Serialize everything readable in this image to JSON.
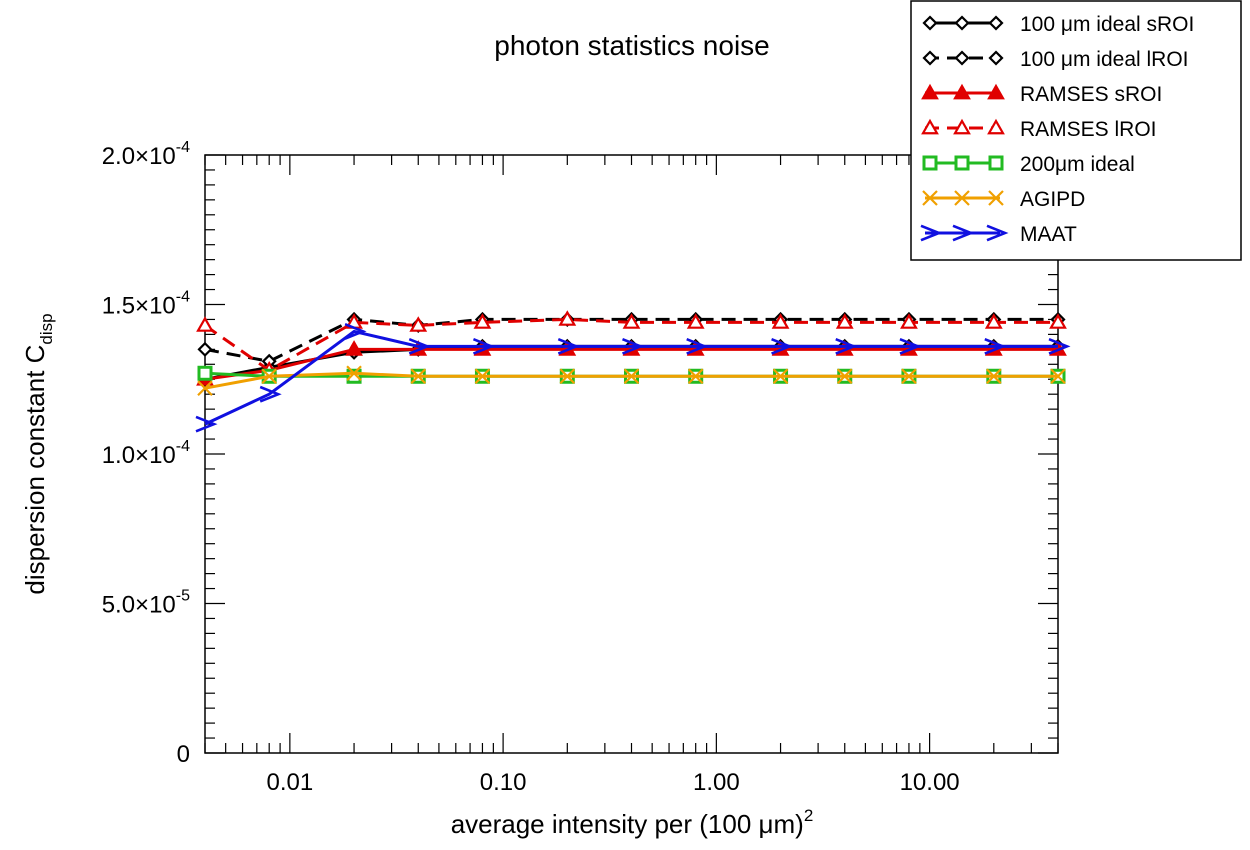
{
  "chart_data": {
    "type": "line",
    "title": "photon statistics noise",
    "xlabel": "average intensity per (100 μm)",
    "xlabel_superscript": "2",
    "ylabel": "dispersion constant C",
    "ylabel_subscript": "disp",
    "xscale": "log",
    "xlim": [
      0.004,
      40
    ],
    "ylim": [
      0,
      0.0002
    ],
    "grid": false,
    "legend_position": "top-right, outside plot",
    "x_ticks": [
      {
        "value": 0.01,
        "label": "0.01"
      },
      {
        "value": 0.1,
        "label": "0.10"
      },
      {
        "value": 1,
        "label": "1.00"
      },
      {
        "value": 10,
        "label": "10.00"
      }
    ],
    "y_ticks": [
      {
        "value": 0,
        "mantissa": "0",
        "exponent": ""
      },
      {
        "value": 5e-05,
        "mantissa": "5.0×10",
        "exponent": "-5"
      },
      {
        "value": 0.0001,
        "mantissa": "1.0×10",
        "exponent": "-4"
      },
      {
        "value": 0.00015,
        "mantissa": "1.5×10",
        "exponent": "-4"
      },
      {
        "value": 0.0002,
        "mantissa": "2.0×10",
        "exponent": "-4"
      }
    ],
    "series": [
      {
        "name": "100 μm ideal sROI",
        "color": "#000000",
        "dash": "solid",
        "marker": "diamond",
        "marker_fill": "white",
        "x": [
          0.004,
          0.008,
          0.02,
          0.04,
          0.08,
          0.2,
          0.4,
          0.8,
          2,
          4,
          8,
          20,
          40
        ],
        "values": [
          0.000125,
          0.000129,
          0.000134,
          0.000135,
          0.000136,
          0.000136,
          0.000136,
          0.000136,
          0.000136,
          0.000136,
          0.000136,
          0.000136,
          0.000136
        ]
      },
      {
        "name": "100 μm ideal lROI",
        "color": "#000000",
        "dash": "dashed",
        "marker": "diamond",
        "marker_fill": "white",
        "x": [
          0.004,
          0.008,
          0.02,
          0.04,
          0.08,
          0.2,
          0.4,
          0.8,
          2,
          4,
          8,
          20,
          40
        ],
        "values": [
          0.000135,
          0.000131,
          0.000145,
          0.000143,
          0.000145,
          0.000145,
          0.000145,
          0.000145,
          0.000145,
          0.000145,
          0.000145,
          0.000145,
          0.000145
        ]
      },
      {
        "name": "RAMSES sROI",
        "color": "#e00000",
        "dash": "solid",
        "marker": "triangle",
        "marker_fill": "#e00000",
        "x": [
          0.004,
          0.008,
          0.02,
          0.04,
          0.08,
          0.2,
          0.4,
          0.8,
          2,
          4,
          8,
          20,
          40
        ],
        "values": [
          0.000125,
          0.000128,
          0.000135,
          0.000135,
          0.000135,
          0.000135,
          0.000135,
          0.000135,
          0.000135,
          0.000135,
          0.000135,
          0.000135,
          0.000135
        ]
      },
      {
        "name": "RAMSES lROI",
        "color": "#e00000",
        "dash": "dashed",
        "marker": "triangle",
        "marker_fill": "white",
        "x": [
          0.004,
          0.008,
          0.02,
          0.04,
          0.08,
          0.2,
          0.4,
          0.8,
          2,
          4,
          8,
          20,
          40
        ],
        "values": [
          0.000143,
          0.000128,
          0.000144,
          0.000143,
          0.000144,
          0.000145,
          0.000144,
          0.000144,
          0.000144,
          0.000144,
          0.000144,
          0.000144,
          0.000144
        ]
      },
      {
        "name": "200μm ideal",
        "color": "#22bb22",
        "dash": "solid",
        "marker": "square",
        "marker_fill": "white",
        "x": [
          0.004,
          0.008,
          0.02,
          0.04,
          0.08,
          0.2,
          0.4,
          0.8,
          2,
          4,
          8,
          20,
          40
        ],
        "values": [
          0.000127,
          0.000126,
          0.000126,
          0.000126,
          0.000126,
          0.000126,
          0.000126,
          0.000126,
          0.000126,
          0.000126,
          0.000126,
          0.000126,
          0.000126
        ]
      },
      {
        "name": "AGIPD",
        "color": "#f0a000",
        "dash": "solid",
        "marker": "x",
        "marker_fill": "none",
        "x": [
          0.004,
          0.008,
          0.02,
          0.04,
          0.08,
          0.2,
          0.4,
          0.8,
          2,
          4,
          8,
          20,
          40
        ],
        "values": [
          0.000122,
          0.000126,
          0.000127,
          0.000126,
          0.000126,
          0.000126,
          0.000126,
          0.000126,
          0.000126,
          0.000126,
          0.000126,
          0.000126,
          0.000126
        ]
      },
      {
        "name": "MAAT",
        "color": "#1010e0",
        "dash": "solid",
        "marker": "arrow",
        "marker_fill": "none",
        "x": [
          0.004,
          0.008,
          0.02,
          0.04,
          0.08,
          0.2,
          0.4,
          0.8,
          2,
          4,
          8,
          20,
          40
        ],
        "values": [
          0.00011,
          0.00012,
          0.000141,
          0.000136,
          0.000136,
          0.000136,
          0.000136,
          0.000136,
          0.000136,
          0.000136,
          0.000136,
          0.000136,
          0.000136
        ]
      }
    ]
  }
}
